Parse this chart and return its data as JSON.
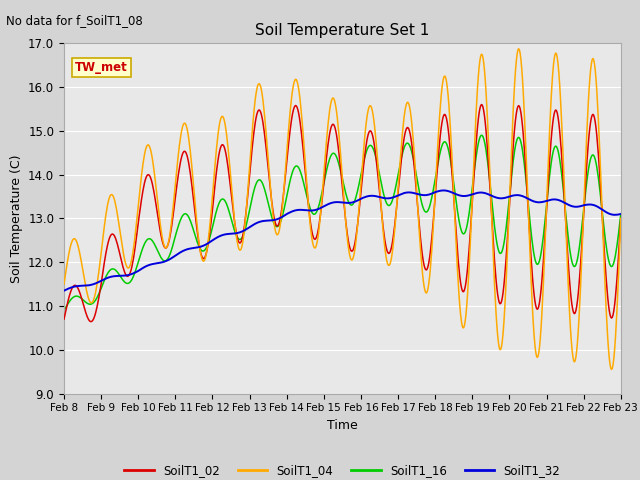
{
  "title": "Soil Temperature Set 1",
  "xlabel": "Time",
  "ylabel": "Soil Temperature (C)",
  "annotation_text": "No data for f_SoilT1_08",
  "legend_label_text": "TW_met",
  "ylim": [
    9.0,
    17.0
  ],
  "yticks": [
    9.0,
    10.0,
    11.0,
    12.0,
    13.0,
    14.0,
    15.0,
    16.0,
    17.0
  ],
  "x_tick_labels": [
    "Feb 8",
    "Feb 9",
    "Feb 10",
    "Feb 11",
    "Feb 12",
    "Feb 13",
    "Feb 14",
    "Feb 15",
    "Feb 16",
    "Feb 17",
    "Feb 18",
    "Feb 19",
    "Feb 20",
    "Feb 21",
    "Feb 22",
    "Feb 23"
  ],
  "colors": {
    "SoilT1_02": "#dd0000",
    "SoilT1_04": "#ffaa00",
    "SoilT1_16": "#00cc00",
    "SoilT1_32": "#0000dd"
  },
  "fig_facecolor": "#d4d4d4",
  "axes_facecolor": "#e8e8e8",
  "grid_color": "#ffffff"
}
